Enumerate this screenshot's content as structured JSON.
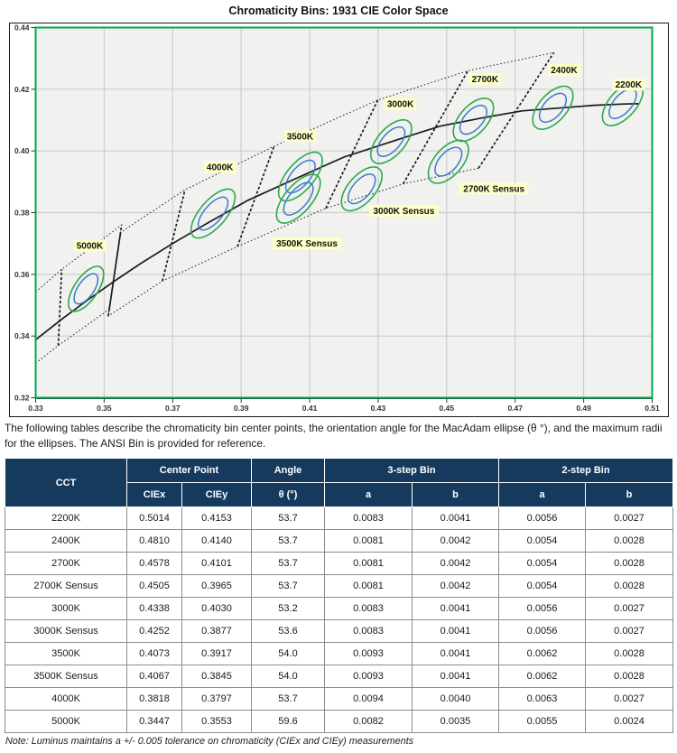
{
  "page": {
    "title": "Chromaticity Bins: 1931 CIE Color Space",
    "description": "The following tables describe the chromaticity bin center points, the orientation angle for the MacAdam ellipse (θ °), and the maximum radii for the ellipses. The ANSI Bin is provided for reference.",
    "footnote": "Note:  Luminus maintains a +/- 0.005 tolerance on chromaticity (CIEx and CIEy) measurements"
  },
  "table": {
    "header": {
      "cct": "CCT",
      "center_point": "Center Point",
      "angle": "Angle",
      "three_step": "3-step Bin",
      "two_step": "2-step Bin",
      "ciex": "CIEx",
      "ciey": "CIEy",
      "theta": "θ (°)",
      "a": "a",
      "b": "b"
    }
  },
  "chart_data": {
    "type": "scatter",
    "title": "Chromaticity Bins: 1931 CIE Color Space",
    "x_axis": {
      "min": 0.33,
      "max": 0.51,
      "tick_step": 0.02
    },
    "y_axis": {
      "min": 0.32,
      "max": 0.44,
      "tick_step": 0.02
    },
    "grid": true,
    "legend": "none",
    "colors": {
      "plot_bg": "#f1f1ef",
      "grid": "#cdcdcd",
      "frame": "#00A94F",
      "line": "#1a1a1a",
      "ellipse_3step": "#2CA94C",
      "ellipse_2step": "#3A7CC8",
      "label_bg": "#FFFFC8",
      "tick_text": "#333333"
    },
    "planckian_locus": [
      [
        0.33,
        0.3388
      ],
      [
        0.338,
        0.3458
      ],
      [
        0.3451,
        0.3516
      ],
      [
        0.353,
        0.3578
      ],
      [
        0.3608,
        0.3636
      ],
      [
        0.37,
        0.37
      ],
      [
        0.3805,
        0.3768
      ],
      [
        0.392,
        0.384
      ],
      [
        0.4053,
        0.3907
      ],
      [
        0.42,
        0.398
      ],
      [
        0.4369,
        0.4041
      ],
      [
        0.448,
        0.408
      ],
      [
        0.4599,
        0.4106
      ],
      [
        0.472,
        0.413
      ],
      [
        0.484,
        0.414
      ],
      [
        0.493,
        0.4148
      ],
      [
        0.5018,
        0.4152
      ],
      [
        0.506,
        0.4153
      ]
    ],
    "ansi_band": {
      "top_boundary": [
        [
          0.33,
          0.3543
        ],
        [
          0.3376,
          0.3616
        ],
        [
          0.3551,
          0.376
        ],
        [
          0.3548,
          0.3736
        ],
        [
          0.3736,
          0.3874
        ],
        [
          0.3996,
          0.4015
        ],
        [
          0.4299,
          0.4165
        ],
        [
          0.4562,
          0.426
        ],
        [
          0.4813,
          0.4319
        ]
      ],
      "bottom_boundary": [
        [
          0.33,
          0.3312
        ],
        [
          0.3366,
          0.3369
        ],
        [
          0.3515,
          0.3487
        ],
        [
          0.3512,
          0.3465
        ],
        [
          0.367,
          0.3578
        ],
        [
          0.3889,
          0.369
        ],
        [
          0.4147,
          0.3814
        ],
        [
          0.4373,
          0.3893
        ],
        [
          0.4593,
          0.3944
        ]
      ],
      "dividers": [
        [
          [
            0.3366,
            0.3369
          ],
          [
            0.3376,
            0.3616
          ]
        ],
        [
          [
            0.3515,
            0.3487
          ],
          [
            0.3551,
            0.376
          ]
        ],
        [
          [
            0.3512,
            0.3465
          ],
          [
            0.3548,
            0.3736
          ]
        ],
        [
          [
            0.367,
            0.3578
          ],
          [
            0.3736,
            0.3874
          ]
        ],
        [
          [
            0.3889,
            0.369
          ],
          [
            0.3996,
            0.4015
          ]
        ],
        [
          [
            0.4147,
            0.3814
          ],
          [
            0.4299,
            0.4165
          ]
        ],
        [
          [
            0.4373,
            0.3893
          ],
          [
            0.4562,
            0.426
          ]
        ],
        [
          [
            0.4593,
            0.3944
          ],
          [
            0.4813,
            0.4319
          ]
        ]
      ]
    },
    "bins": [
      {
        "cct": "2200K",
        "ciex": "0.5014",
        "ciey": "0.4153",
        "theta": "53.7",
        "a3": "0.0083",
        "b3": "0.0041",
        "a2": "0.0056",
        "b2": "0.0027",
        "label_pos": [
          0.5031,
          0.4215
        ]
      },
      {
        "cct": "2400K",
        "ciex": "0.4810",
        "ciey": "0.4140",
        "theta": "53.7",
        "a3": "0.0081",
        "b3": "0.0042",
        "a2": "0.0054",
        "b2": "0.0028",
        "label_pos": [
          0.4843,
          0.4263
        ]
      },
      {
        "cct": "2700K",
        "ciex": "0.4578",
        "ciey": "0.4101",
        "theta": "53.7",
        "a3": "0.0081",
        "b3": "0.0042",
        "a2": "0.0054",
        "b2": "0.0028",
        "label_pos": [
          0.4612,
          0.4233
        ]
      },
      {
        "cct": "2700K Sensus",
        "ciex": "0.4505",
        "ciey": "0.3965",
        "theta": "53.7",
        "a3": "0.0081",
        "b3": "0.0042",
        "a2": "0.0054",
        "b2": "0.0028",
        "label_pos": [
          0.4638,
          0.3878
        ]
      },
      {
        "cct": "3000K",
        "ciex": "0.4338",
        "ciey": "0.4030",
        "theta": "53.2",
        "a3": "0.0083",
        "b3": "0.0041",
        "a2": "0.0056",
        "b2": "0.0027",
        "label_pos": [
          0.4365,
          0.4152
        ]
      },
      {
        "cct": "3000K Sensus",
        "ciex": "0.4252",
        "ciey": "0.3877",
        "theta": "53.6",
        "a3": "0.0083",
        "b3": "0.0041",
        "a2": "0.0056",
        "b2": "0.0027",
        "label_pos": [
          0.4375,
          0.3806
        ]
      },
      {
        "cct": "3500K",
        "ciex": "0.4073",
        "ciey": "0.3917",
        "theta": "54.0",
        "a3": "0.0093",
        "b3": "0.0041",
        "a2": "0.0062",
        "b2": "0.0028",
        "label_pos": [
          0.4072,
          0.4048
        ]
      },
      {
        "cct": "3500K Sensus",
        "ciex": "0.4067",
        "ciey": "0.3845",
        "theta": "54.0",
        "a3": "0.0093",
        "b3": "0.0041",
        "a2": "0.0062",
        "b2": "0.0028",
        "label_pos": [
          0.4092,
          0.37
        ]
      },
      {
        "cct": "4000K",
        "ciex": "0.3818",
        "ciey": "0.3797",
        "theta": "53.7",
        "a3": "0.0094",
        "b3": "0.0040",
        "a2": "0.0063",
        "b2": "0.0027",
        "label_pos": [
          0.3838,
          0.3948
        ]
      },
      {
        "cct": "5000K",
        "ciex": "0.3447",
        "ciey": "0.3553",
        "theta": "59.6",
        "a3": "0.0082",
        "b3": "0.0035",
        "a2": "0.0055",
        "b2": "0.0024",
        "label_pos": [
          0.3458,
          0.3693
        ]
      }
    ]
  }
}
